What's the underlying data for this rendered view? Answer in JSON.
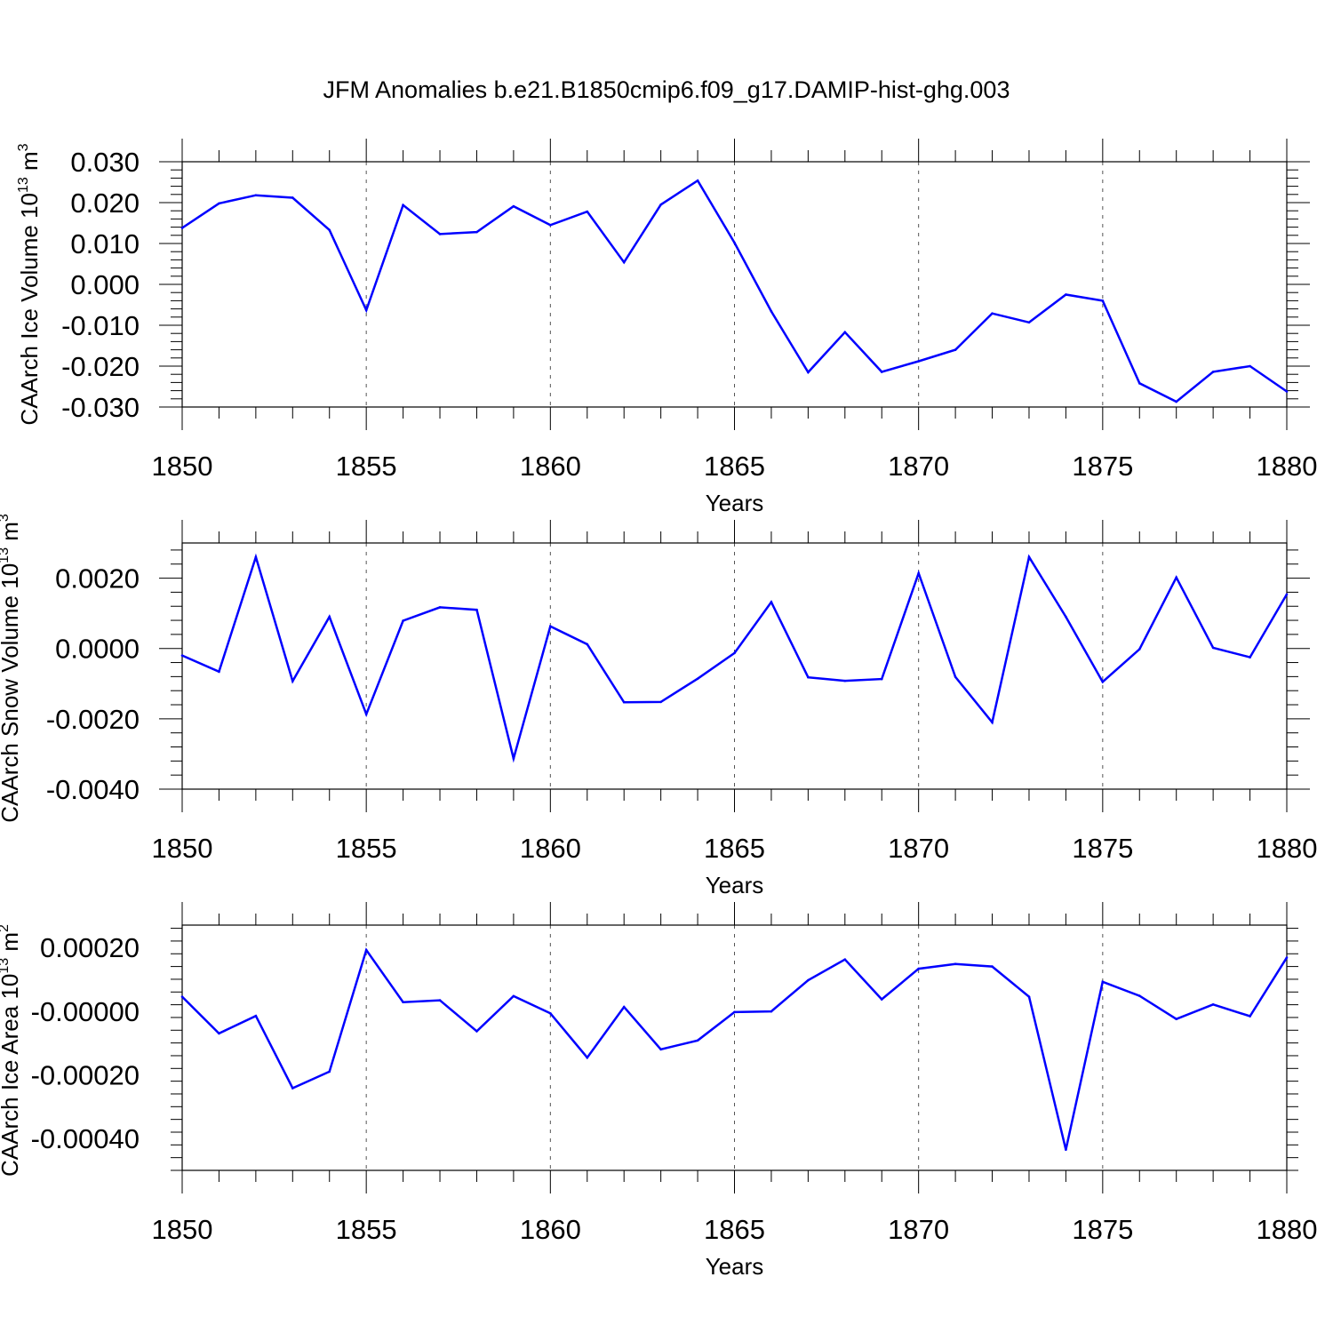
{
  "title": "JFM Anomalies b.e21.B1850cmip6.f09_g17.DAMIP-hist-ghg.003",
  "colors": {
    "line": "#0000ff",
    "axis": "#000000",
    "grid": "#555555"
  },
  "chart_data": [
    {
      "type": "line",
      "title": "JFM Anomalies b.e21.B1850cmip6.f09_g17.DAMIP-hist-ghg.003",
      "xlabel": "Years",
      "ylabel": "CAArch Ice Volume 10",
      "ylabel_sup": "13",
      "ylabel_unit": "m",
      "ylabel_unit_sup": "3",
      "xlim": [
        1850,
        1880
      ],
      "ylim": [
        -0.03,
        0.03
      ],
      "xticks": [
        1850,
        1855,
        1860,
        1865,
        1870,
        1875,
        1880
      ],
      "xtick_labels": [
        "1850",
        "1855",
        "1860",
        "1865",
        "1870",
        "1875",
        "1880"
      ],
      "yticks": [
        0.03,
        0.02,
        0.01,
        0.0,
        -0.01,
        -0.02,
        -0.03
      ],
      "ytick_labels": [
        "0.030",
        "0.020",
        "0.010",
        "0.000",
        "-0.010",
        "-0.020",
        "-0.030"
      ],
      "grid": "vertical dashed",
      "series": [
        {
          "name": "CAArch Ice Volume",
          "x": [
            1850,
            1851,
            1852,
            1853,
            1854,
            1855,
            1856,
            1857,
            1858,
            1859,
            1860,
            1861,
            1862,
            1863,
            1864,
            1865,
            1866,
            1867,
            1868,
            1869,
            1870,
            1871,
            1872,
            1873,
            1874,
            1875,
            1876,
            1877,
            1878,
            1879,
            1880
          ],
          "values": [
            0.0138,
            0.0198,
            0.0218,
            0.0212,
            0.0133,
            -0.0063,
            0.0194,
            0.0123,
            0.0128,
            0.0191,
            0.0145,
            0.0178,
            0.0054,
            0.0195,
            0.0254,
            0.0102,
            -0.0066,
            -0.0215,
            -0.0117,
            -0.0214,
            -0.0188,
            -0.016,
            -0.0071,
            -0.0093,
            -0.0025,
            -0.004,
            -0.0242,
            -0.0287,
            -0.0214,
            -0.02,
            -0.0262
          ]
        }
      ]
    },
    {
      "type": "line",
      "xlabel": "Years",
      "ylabel": "CAArch Snow Volume 10",
      "ylabel_sup": "13",
      "ylabel_unit": "m",
      "ylabel_unit_sup": "3",
      "xlim": [
        1850,
        1880
      ],
      "ylim": [
        -0.004,
        0.003
      ],
      "xticks": [
        1850,
        1855,
        1860,
        1865,
        1870,
        1875,
        1880
      ],
      "xtick_labels": [
        "1850",
        "1855",
        "1860",
        "1865",
        "1870",
        "1875",
        "1880"
      ],
      "yticks": [
        0.002,
        0.0,
        -0.002,
        -0.004
      ],
      "ytick_labels": [
        "0.0020",
        "0.0000",
        "-0.0020",
        "-0.0040"
      ],
      "grid": "vertical dashed",
      "series": [
        {
          "name": "CAArch Snow Volume",
          "x": [
            1850,
            1851,
            1852,
            1853,
            1854,
            1855,
            1856,
            1857,
            1858,
            1859,
            1860,
            1861,
            1862,
            1863,
            1864,
            1865,
            1866,
            1867,
            1868,
            1869,
            1870,
            1871,
            1872,
            1873,
            1874,
            1875,
            1876,
            1877,
            1878,
            1879,
            1880
          ],
          "values": [
            -0.0002,
            -0.00066,
            0.0026,
            -0.00093,
            0.0009,
            -0.00187,
            0.00079,
            0.00117,
            0.0011,
            -0.00313,
            0.00063,
            0.00012,
            -0.00153,
            -0.00152,
            -0.00086,
            -0.00013,
            0.00132,
            -0.00082,
            -0.00092,
            -0.00087,
            0.00214,
            -0.00081,
            -0.0021,
            0.0026,
            0.0009,
            -0.00095,
            -2e-05,
            0.00202,
            2e-05,
            -0.00025,
            0.00154
          ]
        }
      ]
    },
    {
      "type": "line",
      "xlabel": "Years",
      "ylabel": "CAArch Ice Area 10",
      "ylabel_sup": "13",
      "ylabel_unit": "m",
      "ylabel_unit_sup": "2",
      "xlim": [
        1850,
        1880
      ],
      "ylim": [
        -0.0005,
        0.00027
      ],
      "xticks": [
        1850,
        1855,
        1860,
        1865,
        1870,
        1875,
        1880
      ],
      "xtick_labels": [
        "1850",
        "1855",
        "1860",
        "1865",
        "1870",
        "1875",
        "1880"
      ],
      "yticks": [
        0.0002,
        0.0,
        -0.0002,
        -0.0004
      ],
      "ytick_labels": [
        "0.00020",
        "-0.00000",
        "-0.00020",
        "-0.00040"
      ],
      "grid": "vertical dashed",
      "series": [
        {
          "name": "CAArch Ice Area",
          "x": [
            1850,
            1851,
            1852,
            1853,
            1854,
            1855,
            1856,
            1857,
            1858,
            1859,
            1860,
            1861,
            1862,
            1863,
            1864,
            1865,
            1866,
            1867,
            1868,
            1869,
            1870,
            1871,
            1872,
            1873,
            1874,
            1875,
            1876,
            1877,
            1878,
            1879,
            1880
          ],
          "values": [
            4.5e-05,
            -7e-05,
            -1.5e-05,
            -0.000242,
            -0.00019,
            0.000192,
            2.8e-05,
            3.4e-05,
            -6.3e-05,
            4.7e-05,
            -7e-06,
            -0.000146,
            1.3e-05,
            -0.00012,
            -9.2e-05,
            -3e-06,
            -1e-06,
            9.7e-05,
            0.000162,
            3.7e-05,
            0.000133,
            0.000148,
            0.00014,
            4.5e-05,
            -0.000435,
            9.2e-05,
            4.8e-05,
            -2.5e-05,
            2.1e-05,
            -1.6e-05,
            0.000168
          ]
        }
      ]
    }
  ]
}
